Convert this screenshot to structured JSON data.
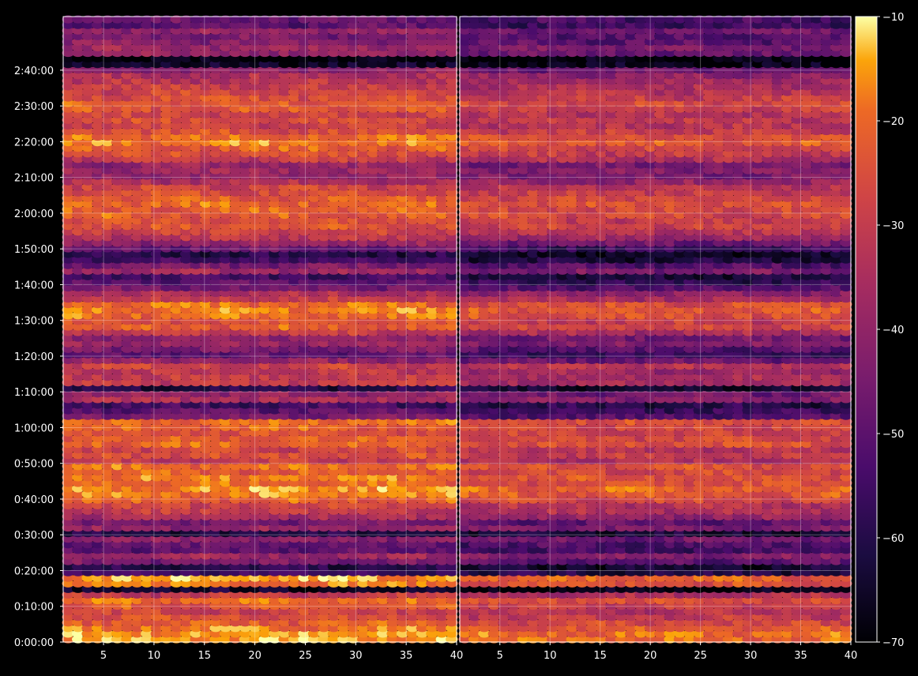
{
  "chart_data": {
    "type": "heatmap",
    "title": "",
    "colormap": "inferno",
    "background": "#000000",
    "grid": true,
    "shared_y": true,
    "y": {
      "label": "",
      "range_seconds": [
        0,
        10500
      ],
      "ticks": [
        "0:00:00",
        "0:10:00",
        "0:20:00",
        "0:30:00",
        "0:40:00",
        "0:50:00",
        "1:00:00",
        "1:10:00",
        "1:20:00",
        "1:30:00",
        "1:40:00",
        "1:50:00",
        "2:00:00",
        "2:10:00",
        "2:20:00",
        "2:30:00",
        "2:40:00"
      ]
    },
    "panels": [
      {
        "name": "left",
        "xlim": [
          1,
          40
        ],
        "xticks": [
          "5",
          "10",
          "15",
          "20",
          "25",
          "30",
          "35",
          "40"
        ],
        "row_levels_dB": [
          -15,
          -15,
          -18,
          -22,
          -25,
          -28,
          -24,
          -20,
          -30,
          -65,
          -18,
          -15,
          -55,
          -60,
          -45,
          -38,
          -50,
          -48,
          -42,
          -60,
          -40,
          -45,
          -35,
          -30,
          -28,
          -22,
          -18,
          -16,
          -20,
          -18,
          -22,
          -20,
          -30,
          -25,
          -28,
          -20,
          -22,
          -24,
          -22,
          -20,
          -45,
          -50,
          -55,
          -35,
          -40,
          -60,
          -30,
          -30,
          -32,
          -28,
          -40,
          -50,
          -45,
          -38,
          -40,
          -30,
          -22,
          -25,
          -20,
          -18,
          -20,
          -30,
          -35,
          -45,
          -50,
          -55,
          -38,
          -45,
          -55,
          -60,
          -48,
          -40,
          -32,
          -28,
          -24,
          -25,
          -22,
          -22,
          -20,
          -22,
          -25,
          -28,
          -35,
          -40,
          -38,
          -40,
          -30,
          -25,
          -22,
          -18,
          -20,
          -25,
          -28,
          -26,
          -28,
          -24,
          -22,
          -25,
          -28,
          -30,
          -32,
          -35,
          -40,
          -65,
          -70,
          -40,
          -38,
          -42,
          -45,
          -40,
          -50,
          -48
        ]
      },
      {
        "name": "right",
        "xlim": [
          1,
          40
        ],
        "xticks": [
          "5",
          "10",
          "15",
          "20",
          "25",
          "30",
          "35",
          "40"
        ],
        "row_levels_dB": [
          -20,
          -20,
          -23,
          -27,
          -30,
          -33,
          -30,
          -25,
          -35,
          -68,
          -25,
          -22,
          -60,
          -64,
          -50,
          -43,
          -55,
          -53,
          -47,
          -64,
          -45,
          -50,
          -40,
          -35,
          -33,
          -27,
          -23,
          -21,
          -25,
          -24,
          -27,
          -25,
          -35,
          -30,
          -33,
          -25,
          -27,
          -29,
          -27,
          -25,
          -52,
          -56,
          -60,
          -42,
          -46,
          -64,
          -36,
          -36,
          -38,
          -33,
          -48,
          -57,
          -52,
          -44,
          -46,
          -36,
          -27,
          -30,
          -25,
          -23,
          -25,
          -35,
          -41,
          -52,
          -58,
          -62,
          -45,
          -52,
          -62,
          -66,
          -56,
          -47,
          -38,
          -33,
          -29,
          -30,
          -27,
          -27,
          -25,
          -27,
          -30,
          -33,
          -40,
          -45,
          -43,
          -45,
          -35,
          -30,
          -27,
          -23,
          -25,
          -30,
          -33,
          -31,
          -33,
          -29,
          -27,
          -30,
          -33,
          -35,
          -38,
          -41,
          -47,
          -68,
          -70,
          -48,
          -45,
          -50,
          -52,
          -47,
          -56,
          -54
        ]
      }
    ],
    "colorbar": {
      "range": [
        -70,
        -10
      ],
      "ticks": [
        "−70",
        "−60",
        "−50",
        "−40",
        "−30",
        "−20",
        "−10"
      ]
    }
  }
}
